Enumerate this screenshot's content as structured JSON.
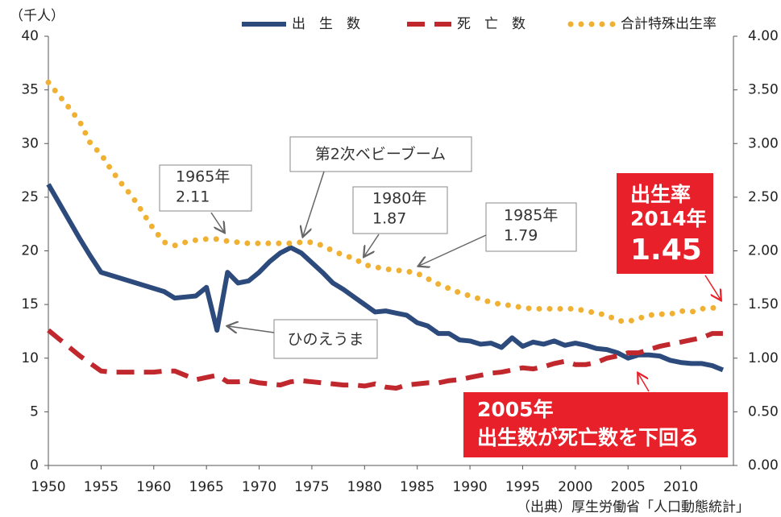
{
  "chart_data": {
    "type": "line",
    "y_label": "（千人）",
    "source": "（出典）厚生労働省「人口動態統計」",
    "x": [
      1950,
      1951,
      1952,
      1953,
      1954,
      1955,
      1956,
      1957,
      1958,
      1959,
      1960,
      1961,
      1962,
      1963,
      1964,
      1965,
      1966,
      1967,
      1968,
      1969,
      1970,
      1971,
      1972,
      1973,
      1974,
      1975,
      1976,
      1977,
      1978,
      1979,
      1980,
      1981,
      1982,
      1983,
      1984,
      1985,
      1986,
      1987,
      1988,
      1989,
      1990,
      1991,
      1992,
      1993,
      1994,
      1995,
      1996,
      1997,
      1998,
      1999,
      2000,
      2001,
      2002,
      2003,
      2004,
      2005,
      2006,
      2007,
      2008,
      2009,
      2010,
      2011,
      2012,
      2013,
      2014
    ],
    "xlim": [
      1950,
      2015
    ],
    "xticks": [
      1950,
      1955,
      1960,
      1965,
      1970,
      1975,
      1980,
      1985,
      1990,
      1995,
      2000,
      2005,
      2010
    ],
    "ylim": [
      0,
      40
    ],
    "yticks": [
      0,
      5,
      10,
      15,
      20,
      25,
      30,
      35,
      40
    ],
    "y2lim": [
      0,
      4
    ],
    "y2ticks": [
      {
        "value": 0,
        "label": "0.00"
      },
      {
        "value": 0.5,
        "label": "0.50"
      },
      {
        "value": 1,
        "label": "1.00"
      },
      {
        "value": 1.5,
        "label": "1.50"
      },
      {
        "value": 2,
        "label": "2.00"
      },
      {
        "value": 2.5,
        "label": "2.50"
      },
      {
        "value": 3,
        "label": "3.00"
      },
      {
        "value": 3.5,
        "label": "3.50"
      },
      {
        "value": 4,
        "label": "4.00"
      }
    ],
    "grid": false,
    "series": [
      {
        "name": "出　生　数",
        "color": "#2d4a7c",
        "style": "solid",
        "values": [
          26.2,
          24.5,
          22.8,
          21.1,
          19.5,
          18.0,
          17.7,
          17.4,
          17.1,
          16.8,
          16.5,
          16.2,
          15.6,
          15.7,
          15.8,
          16.6,
          12.6,
          18.0,
          17.0,
          17.2,
          18.0,
          19.0,
          19.8,
          20.3,
          19.8,
          18.9,
          18.0,
          17.0,
          16.4,
          15.7,
          15.0,
          14.3,
          14.4,
          14.2,
          14.0,
          13.3,
          13.0,
          12.3,
          12.3,
          11.7,
          11.6,
          11.3,
          11.4,
          11.0,
          11.9,
          11.1,
          11.5,
          11.3,
          11.6,
          11.2,
          11.4,
          11.2,
          10.9,
          10.8,
          10.5,
          10.0,
          10.3,
          10.3,
          10.2,
          9.8,
          9.6,
          9.5,
          9.5,
          9.3,
          8.9
        ]
      },
      {
        "name": "死　亡　数",
        "color": "#c0282e",
        "style": "dashed",
        "values": [
          12.6,
          11.8,
          11.0,
          10.2,
          9.5,
          8.8,
          8.7,
          8.7,
          8.7,
          8.7,
          8.7,
          8.8,
          8.8,
          8.4,
          8.0,
          8.2,
          8.4,
          7.8,
          7.8,
          7.9,
          7.7,
          7.6,
          7.5,
          7.8,
          7.9,
          7.8,
          7.7,
          7.6,
          7.5,
          7.5,
          7.4,
          7.6,
          7.3,
          7.2,
          7.5,
          7.6,
          7.7,
          7.7,
          7.9,
          8.0,
          8.2,
          8.4,
          8.6,
          8.7,
          8.9,
          9.1,
          9.0,
          9.2,
          9.5,
          9.7,
          9.4,
          9.4,
          9.6,
          10.0,
          10.2,
          10.5,
          10.5,
          10.8,
          11.1,
          11.3,
          11.5,
          11.7,
          11.9,
          12.3,
          12.3
        ]
      },
      {
        "name": "合計特殊出生率",
        "color": "#f0b133",
        "style": "dotted",
        "axis": "y2",
        "values": [
          3.57,
          3.45,
          3.33,
          3.2,
          3.0,
          2.9,
          2.75,
          2.62,
          2.5,
          2.35,
          2.2,
          2.08,
          2.05,
          2.08,
          2.1,
          2.11,
          2.11,
          2.09,
          2.08,
          2.07,
          2.07,
          2.07,
          2.07,
          2.07,
          2.08,
          2.08,
          2.05,
          2.0,
          1.96,
          1.93,
          1.87,
          1.85,
          1.83,
          1.82,
          1.81,
          1.79,
          1.74,
          1.69,
          1.65,
          1.61,
          1.58,
          1.55,
          1.52,
          1.5,
          1.49,
          1.47,
          1.46,
          1.46,
          1.46,
          1.46,
          1.46,
          1.44,
          1.42,
          1.4,
          1.35,
          1.34,
          1.37,
          1.4,
          1.41,
          1.41,
          1.44,
          1.43,
          1.46,
          1.47,
          1.45
        ]
      }
    ],
    "annotations": [
      {
        "lines": [
          "1965年",
          "2.11"
        ]
      },
      {
        "lines": [
          "第2次ベビーブーム"
        ]
      },
      {
        "lines": [
          "1980年",
          "1.87"
        ]
      },
      {
        "lines": [
          "1985年",
          "1.79"
        ]
      },
      {
        "lines": [
          "ひのえうま"
        ]
      },
      {
        "lines": [
          "出生率",
          "2014年",
          "1.45"
        ]
      },
      {
        "lines": [
          "2005年",
          "出生数が死亡数を下回る"
        ]
      }
    ]
  }
}
